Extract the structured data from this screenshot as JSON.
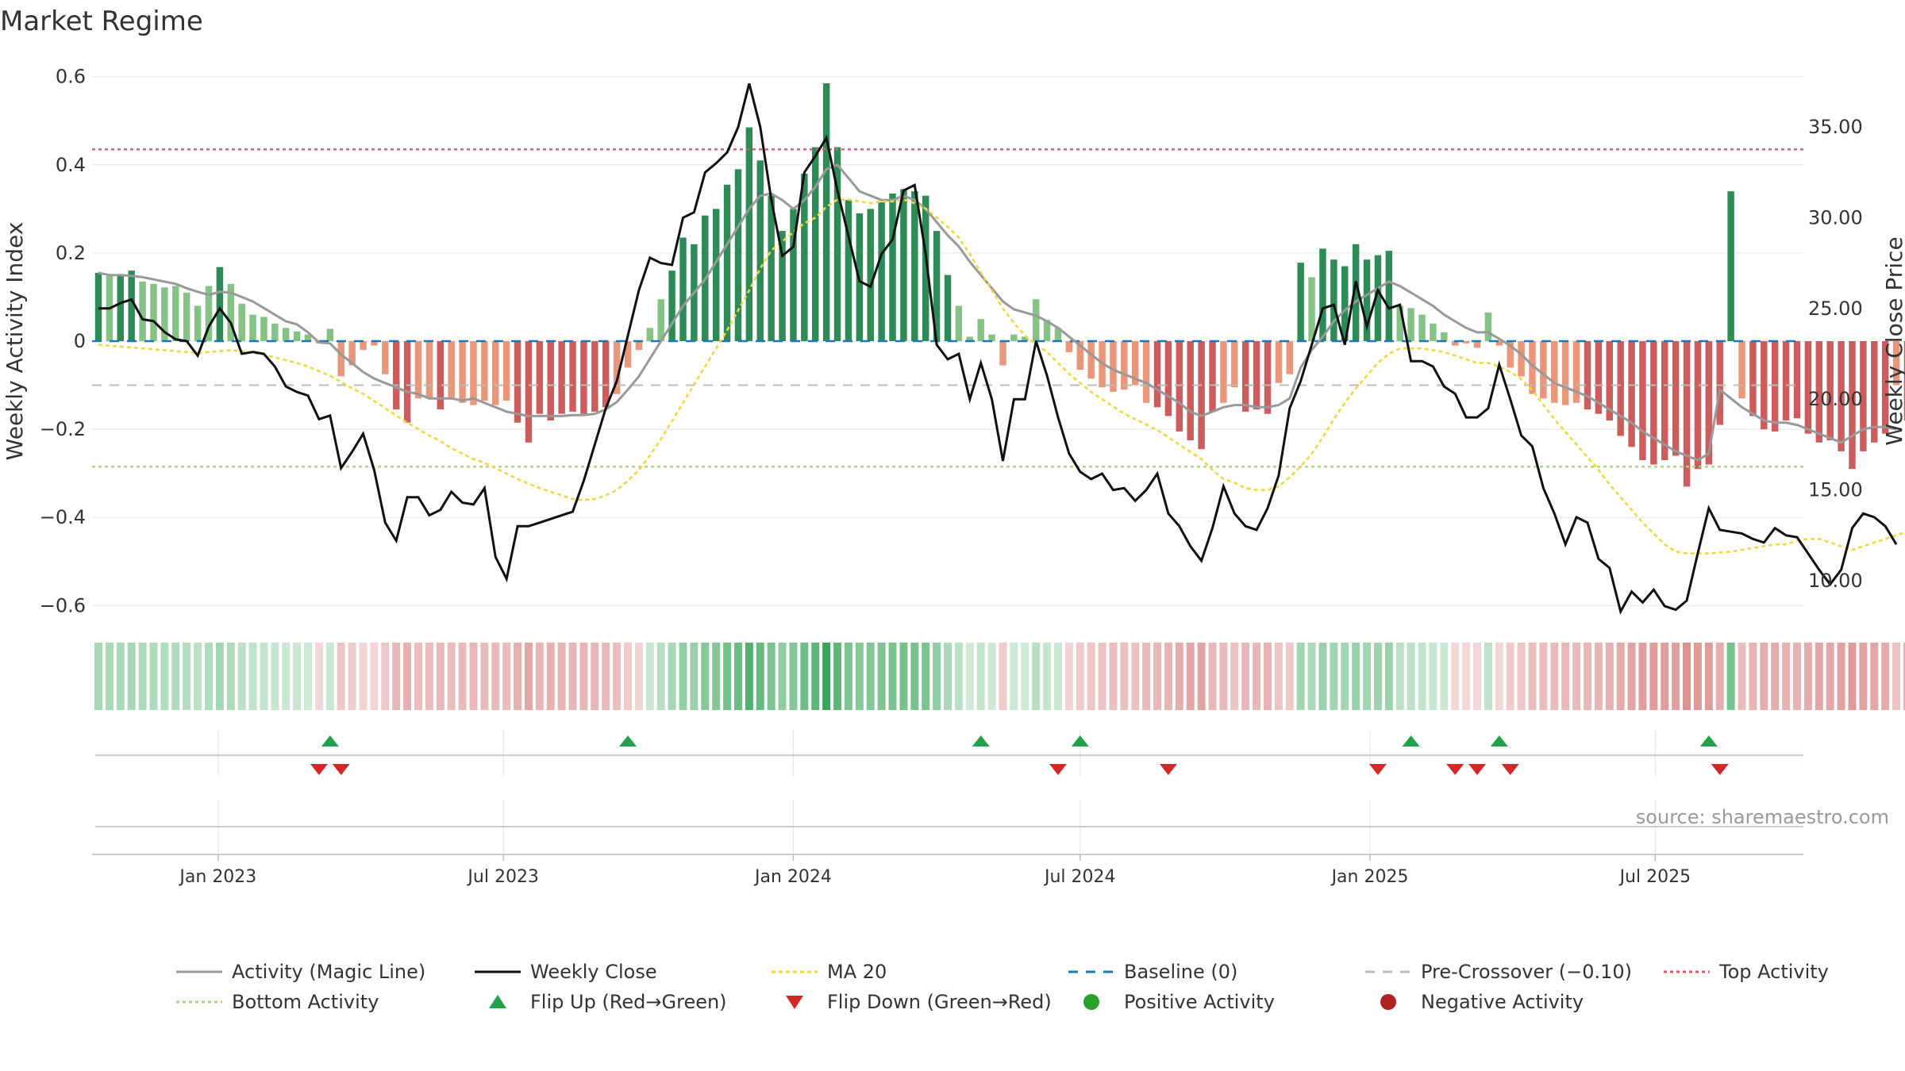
{
  "title": "Market Regime",
  "source": "source: sharemaestro.com",
  "colors": {
    "pos_strong": "#2e8b57",
    "pos_light": "#85c285",
    "neg_strong": "#cd5c5c",
    "neg_light": "#e9967a",
    "magic_line": "#999999",
    "close_line": "#111111",
    "ma20": "#f0d83a",
    "baseline": "#1f77b4",
    "pre_crossover": "#bbbbbb",
    "top_activity": "#e05570",
    "bottom_activity": "#a8d878",
    "flip_up": "#22a04b",
    "flip_down": "#d62728",
    "positive": "#2ca02c",
    "negative": "#b22222"
  },
  "chart_data": {
    "type": "bar",
    "y_left": {
      "label": "Weekly Activity Index",
      "range": [
        -0.63,
        0.63
      ],
      "ticks": [
        0.6,
        0.4,
        0.2,
        0,
        -0.2,
        -0.4,
        -0.6
      ],
      "tick_labels": [
        "0.6",
        "0.4",
        "0.2",
        "0",
        "−0.2",
        "−0.4",
        "−0.6"
      ]
    },
    "y_right": {
      "label": "Weekly Close Price",
      "range": [
        7.9,
        38.5
      ],
      "ticks": [
        35,
        30,
        25,
        20,
        15,
        10
      ],
      "tick_labels": [
        "35.00",
        "30.00",
        "25.00",
        "20.00",
        "15.00",
        "10.00"
      ]
    },
    "x_axis": {
      "start": "2022-10-17",
      "end": "2025-09-29",
      "ticks": [
        "2023-01-01",
        "2023-07-01",
        "2024-01-01",
        "2024-07-01",
        "2025-01-01",
        "2025-07-01"
      ],
      "tick_labels": [
        "Jan 2023",
        "Jul 2023",
        "Jan 2024",
        "Jul 2024",
        "Jan 2025",
        "Jul 2025"
      ]
    },
    "levels": {
      "baseline": 0,
      "pre_crossover": -0.1,
      "top_activity": 0.435,
      "bottom_activity": -0.285
    },
    "activity": [
      0.155,
      0.148,
      0.15,
      0.16,
      0.135,
      0.13,
      0.122,
      0.125,
      0.11,
      0.08,
      0.125,
      0.168,
      0.13,
      0.085,
      0.06,
      0.055,
      0.04,
      0.03,
      0.022,
      0.015,
      -0.005,
      0.028,
      -0.08,
      -0.055,
      -0.02,
      -0.01,
      -0.075,
      -0.155,
      -0.185,
      -0.13,
      -0.13,
      -0.155,
      -0.13,
      -0.14,
      -0.145,
      -0.135,
      -0.145,
      -0.135,
      -0.185,
      -0.23,
      -0.165,
      -0.18,
      -0.165,
      -0.16,
      -0.165,
      -0.16,
      -0.15,
      -0.12,
      -0.06,
      -0.02,
      0.03,
      0.095,
      0.16,
      0.235,
      0.22,
      0.285,
      0.3,
      0.355,
      0.39,
      0.485,
      0.41,
      0.33,
      0.25,
      0.3,
      0.38,
      0.44,
      0.585,
      0.44,
      0.32,
      0.29,
      0.3,
      0.315,
      0.335,
      0.345,
      0.34,
      0.33,
      0.25,
      0.15,
      0.08,
      0.01,
      0.05,
      0.015,
      -0.055,
      0.015,
      0.01,
      0.095,
      0.048,
      0.03,
      -0.025,
      -0.065,
      -0.085,
      -0.105,
      -0.115,
      -0.11,
      -0.1,
      -0.14,
      -0.15,
      -0.17,
      -0.205,
      -0.225,
      -0.245,
      -0.16,
      -0.14,
      -0.105,
      -0.16,
      -0.155,
      -0.165,
      -0.095,
      -0.075,
      0.178,
      0.145,
      0.21,
      0.185,
      0.17,
      0.22,
      0.185,
      0.195,
      0.205,
      0.08,
      0.075,
      0.06,
      0.04,
      0.02,
      -0.01,
      -0.005,
      -0.015,
      0.065,
      -0.01,
      -0.06,
      -0.08,
      -0.12,
      -0.13,
      -0.14,
      -0.145,
      -0.14,
      -0.155,
      -0.165,
      -0.18,
      -0.215,
      -0.24,
      -0.27,
      -0.28,
      -0.27,
      -0.26,
      -0.33,
      -0.29,
      -0.28,
      -0.19,
      0.34,
      -0.13,
      -0.17,
      -0.2,
      -0.205,
      -0.18,
      -0.175,
      -0.21,
      -0.23,
      -0.225,
      -0.25,
      -0.29,
      -0.25,
      -0.23,
      -0.21,
      -0.1,
      -0.18,
      -0.19,
      -0.23
    ],
    "magic_line": [
      0.155,
      0.15,
      0.15,
      0.148,
      0.145,
      0.14,
      0.135,
      0.13,
      0.12,
      0.112,
      0.105,
      0.112,
      0.11,
      0.1,
      0.09,
      0.075,
      0.06,
      0.045,
      0.038,
      0.02,
      -0.003,
      -0.005,
      -0.03,
      -0.05,
      -0.07,
      -0.085,
      -0.095,
      -0.105,
      -0.115,
      -0.12,
      -0.13,
      -0.13,
      -0.13,
      -0.135,
      -0.13,
      -0.14,
      -0.15,
      -0.16,
      -0.165,
      -0.17,
      -0.17,
      -0.17,
      -0.17,
      -0.168,
      -0.168,
      -0.165,
      -0.155,
      -0.138,
      -0.11,
      -0.08,
      -0.04,
      0.0,
      0.04,
      0.08,
      0.11,
      0.14,
      0.18,
      0.22,
      0.26,
      0.3,
      0.33,
      0.335,
      0.32,
      0.3,
      0.32,
      0.35,
      0.39,
      0.4,
      0.37,
      0.34,
      0.33,
      0.32,
      0.32,
      0.33,
      0.32,
      0.3,
      0.27,
      0.24,
      0.215,
      0.18,
      0.15,
      0.12,
      0.09,
      0.072,
      0.065,
      0.058,
      0.045,
      0.03,
      0.01,
      -0.01,
      -0.03,
      -0.05,
      -0.065,
      -0.075,
      -0.085,
      -0.095,
      -0.11,
      -0.125,
      -0.14,
      -0.16,
      -0.17,
      -0.16,
      -0.15,
      -0.145,
      -0.145,
      -0.15,
      -0.15,
      -0.145,
      -0.13,
      -0.06,
      -0.02,
      0.01,
      0.045,
      0.07,
      0.09,
      0.105,
      0.12,
      0.135,
      0.125,
      0.11,
      0.095,
      0.08,
      0.06,
      0.045,
      0.03,
      0.02,
      0.02,
      0.005,
      -0.01,
      -0.03,
      -0.055,
      -0.075,
      -0.095,
      -0.105,
      -0.115,
      -0.125,
      -0.14,
      -0.155,
      -0.17,
      -0.185,
      -0.205,
      -0.22,
      -0.235,
      -0.25,
      -0.26,
      -0.27,
      -0.255,
      -0.11,
      -0.13,
      -0.15,
      -0.165,
      -0.18,
      -0.185,
      -0.185,
      -0.19,
      -0.2,
      -0.21,
      -0.22,
      -0.23,
      -0.215,
      -0.2,
      -0.195,
      -0.195,
      -0.2
    ],
    "close": [
      25.0,
      25.0,
      25.3,
      25.5,
      24.4,
      24.3,
      23.7,
      23.3,
      23.2,
      22.4,
      24.0,
      25.0,
      24.2,
      22.5,
      22.6,
      22.5,
      21.8,
      20.7,
      20.4,
      20.2,
      18.9,
      19.1,
      16.2,
      17.1,
      18.1,
      16.1,
      13.2,
      12.2,
      14.6,
      14.6,
      13.6,
      13.9,
      14.9,
      14.3,
      14.2,
      15.1,
      11.3,
      10.1,
      13.0,
      13.0,
      13.2,
      13.4,
      13.6,
      13.8,
      15.5,
      17.5,
      19.5,
      21.0,
      23.5,
      26.0,
      27.8,
      27.5,
      27.4,
      30.0,
      30.3,
      32.5,
      33.0,
      33.6,
      35.0,
      37.4,
      35.0,
      31.0,
      27.9,
      28.4,
      32.5,
      33.4,
      34.4,
      31.5,
      29.0,
      26.5,
      26.2,
      28.0,
      28.8,
      31.5,
      31.8,
      28.0,
      23.0,
      22.2,
      22.5,
      20.0,
      22.0,
      20.0,
      16.6,
      20.0,
      20.0,
      23.2,
      21.3,
      19.0,
      17.0,
      16.0,
      15.6,
      15.9,
      15.0,
      15.1,
      14.4,
      15.0,
      15.9,
      13.7,
      13.0,
      11.9,
      11.1,
      12.9,
      15.2,
      13.7,
      13.0,
      12.8,
      14.0,
      15.8,
      19.5,
      21.0,
      23.0,
      25.0,
      25.2,
      23.0,
      26.5,
      24.0,
      26.0,
      25.0,
      25.2,
      22.1,
      22.1,
      21.8,
      20.7,
      20.3,
      19.0,
      19.0,
      19.5,
      21.9,
      20.0,
      18.0,
      17.4,
      15.1,
      13.7,
      12.0,
      13.5,
      13.2,
      11.2,
      10.7,
      8.3,
      9.4,
      8.8,
      9.5,
      8.6,
      8.4,
      8.9,
      11.5,
      14.0,
      12.8,
      12.7,
      12.6,
      12.3,
      12.1,
      12.9,
      12.5,
      12.4,
      11.5,
      10.6,
      9.8,
      10.6,
      12.9,
      13.7,
      13.5,
      13.0,
      12.0
    ],
    "ma20": [
      23.0,
      22.95,
      22.9,
      22.85,
      22.8,
      22.75,
      22.7,
      22.65,
      22.6,
      22.55,
      22.6,
      22.65,
      22.7,
      22.65,
      22.55,
      22.45,
      22.3,
      22.15,
      22.0,
      21.8,
      21.55,
      21.3,
      20.95,
      20.6,
      20.3,
      19.9,
      19.5,
      19.1,
      18.7,
      18.35,
      18.0,
      17.7,
      17.3,
      17.0,
      16.7,
      16.5,
      16.2,
      15.9,
      15.6,
      15.35,
      15.1,
      14.9,
      14.7,
      14.5,
      14.45,
      14.5,
      14.7,
      15.0,
      15.5,
      16.1,
      16.9,
      17.8,
      18.8,
      19.8,
      20.8,
      21.8,
      22.8,
      23.8,
      24.9,
      26.0,
      27.2,
      28.2,
      28.7,
      29.2,
      29.7,
      30.0,
      30.6,
      31.0,
      31.0,
      30.9,
      30.8,
      30.9,
      30.9,
      31.0,
      30.8,
      30.5,
      30.0,
      29.5,
      28.9,
      28.0,
      27.0,
      26.0,
      25.0,
      24.2,
      23.5,
      23.0,
      22.6,
      22.0,
      21.4,
      20.9,
      20.4,
      20.0,
      19.6,
      19.2,
      18.9,
      18.6,
      18.3,
      17.9,
      17.5,
      17.1,
      16.7,
      16.1,
      15.6,
      15.4,
      15.1,
      15.0,
      15.0,
      15.2,
      15.7,
      16.3,
      17.0,
      17.9,
      18.9,
      19.8,
      20.6,
      21.3,
      22.0,
      22.5,
      22.8,
      22.8,
      22.8,
      22.7,
      22.6,
      22.4,
      22.2,
      22.0,
      22.0,
      21.8,
      21.5,
      21.1,
      20.5,
      19.7,
      18.9,
      18.2,
      17.5,
      16.8,
      16.1,
      15.3,
      14.6,
      13.9,
      13.2,
      12.6,
      12.0,
      11.6,
      11.5,
      11.5,
      11.5,
      11.55,
      11.6,
      11.7,
      11.8,
      11.9,
      12.0,
      12.0,
      12.2,
      12.3,
      12.3,
      12.1,
      11.9,
      11.7,
      11.9,
      12.1,
      12.3,
      12.5,
      12.7
    ],
    "flip_up_idx": [
      21,
      48,
      80,
      89,
      119,
      127,
      146
    ],
    "flip_down_idx": [
      20,
      22,
      87,
      97,
      116,
      123,
      125,
      128,
      147
    ],
    "legend": [
      {
        "label": "Activity (Magic Line)",
        "kind": "line",
        "color": "#999999",
        "dash": ""
      },
      {
        "label": "Weekly Close",
        "kind": "line",
        "color": "#111111",
        "dash": ""
      },
      {
        "label": "MA 20",
        "kind": "line",
        "color": "#f0d83a",
        "dash": "5,4"
      },
      {
        "label": "Baseline (0)",
        "kind": "line",
        "color": "#1f77b4",
        "dash": "12,10"
      },
      {
        "label": "Pre-Crossover (−0.10)",
        "kind": "line",
        "color": "#bbbbbb",
        "dash": "12,10"
      },
      {
        "label": "Top Activity",
        "kind": "line",
        "color": "#e05570",
        "dash": "4,4"
      },
      {
        "label": "Bottom Activity",
        "kind": "line",
        "color": "#a8d878",
        "dash": "4,4"
      },
      {
        "label": "Flip Up (Red→Green)",
        "kind": "tri-up",
        "color": "#22a04b"
      },
      {
        "label": "Flip Down (Green→Red)",
        "kind": "tri-down",
        "color": "#d62728"
      },
      {
        "label": "Positive Activity",
        "kind": "dot",
        "color": "#2ca02c"
      },
      {
        "label": "Negative Activity",
        "kind": "dot",
        "color": "#b22222"
      }
    ]
  }
}
